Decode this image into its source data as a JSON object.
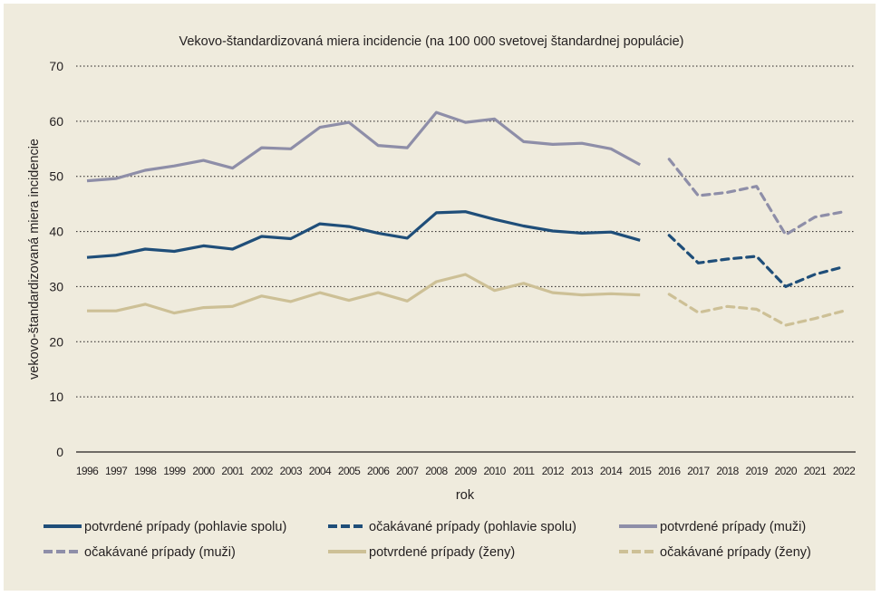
{
  "chart_data": {
    "type": "line",
    "title": "Vekovo-štandardizovaná miera incidencie (na 100 000 svetovej štandardnej populácie)",
    "xlabel": "rok",
    "ylabel": "vekovo-štandardizovaná miera incidencie",
    "ylim": [
      0,
      70
    ],
    "yticks": [
      "0",
      "10",
      "20",
      "30",
      "40",
      "50",
      "60",
      "70"
    ],
    "ytick_values": [
      0,
      10,
      20,
      30,
      40,
      50,
      60,
      70
    ],
    "x": [
      "1996",
      "1997",
      "1998",
      "1999",
      "2000",
      "2001",
      "2002",
      "2003",
      "2004",
      "2005",
      "2006",
      "2007",
      "2008",
      "2009",
      "2010",
      "2011",
      "2012",
      "2013",
      "2014",
      "2015",
      "2016",
      "2017",
      "2018",
      "2019",
      "2020",
      "2021",
      "2022"
    ],
    "grid": "horizontal-dotted",
    "legend_position": "bottom",
    "series": [
      {
        "name": "potvrdené prípady (pohlavie spolu)",
        "style": "solid",
        "color": "#1f4e79",
        "x": [
          "1996",
          "1997",
          "1998",
          "1999",
          "2000",
          "2001",
          "2002",
          "2003",
          "2004",
          "2005",
          "2006",
          "2007",
          "2008",
          "2009",
          "2010",
          "2011",
          "2012",
          "2013",
          "2014",
          "2015"
        ],
        "values": [
          35.3,
          35.7,
          36.8,
          36.4,
          37.4,
          36.8,
          39.1,
          38.7,
          41.4,
          40.9,
          39.7,
          38.8,
          43.4,
          43.6,
          42.2,
          41.0,
          40.1,
          39.7,
          39.9,
          38.4
        ]
      },
      {
        "name": "očakávané prípady (pohlavie spolu)",
        "style": "dashed",
        "color": "#1f4e79",
        "x": [
          "2016",
          "2017",
          "2018",
          "2019",
          "2020",
          "2021",
          "2022"
        ],
        "values": [
          39.3,
          34.3,
          35.0,
          35.5,
          30.0,
          32.2,
          33.6
        ]
      },
      {
        "name": "potvrdené prípady (muži)",
        "style": "solid",
        "color": "#8e8ea8",
        "x": [
          "1996",
          "1997",
          "1998",
          "1999",
          "2000",
          "2001",
          "2002",
          "2003",
          "2004",
          "2005",
          "2006",
          "2007",
          "2008",
          "2009",
          "2010",
          "2011",
          "2012",
          "2013",
          "2014",
          "2015"
        ],
        "values": [
          49.2,
          49.6,
          51.1,
          51.9,
          52.9,
          51.5,
          55.2,
          55.0,
          58.9,
          59.8,
          55.6,
          55.2,
          61.6,
          59.8,
          60.4,
          56.3,
          55.8,
          56.0,
          55.0,
          52.1
        ]
      },
      {
        "name": "očakávané prípady (muži)",
        "style": "dashed",
        "color": "#8e8ea8",
        "x": [
          "2016",
          "2017",
          "2018",
          "2019",
          "2020",
          "2021",
          "2022"
        ],
        "values": [
          53.1,
          46.5,
          47.1,
          48.2,
          39.4,
          42.6,
          43.6
        ]
      },
      {
        "name": "potvrdené prípady (ženy)",
        "style": "solid",
        "color": "#cdc096",
        "x": [
          "1996",
          "1997",
          "1998",
          "1999",
          "2000",
          "2001",
          "2002",
          "2003",
          "2004",
          "2005",
          "2006",
          "2007",
          "2008",
          "2009",
          "2010",
          "2011",
          "2012",
          "2013",
          "2014",
          "2015"
        ],
        "values": [
          25.6,
          25.6,
          26.8,
          25.2,
          26.2,
          26.4,
          28.3,
          27.3,
          28.9,
          27.5,
          28.9,
          27.4,
          30.9,
          32.2,
          29.3,
          30.6,
          28.9,
          28.5,
          28.7,
          28.5
        ]
      },
      {
        "name": "očakávané prípady (ženy)",
        "style": "dashed",
        "color": "#cdc096",
        "x": [
          "2016",
          "2017",
          "2018",
          "2019",
          "2020",
          "2021",
          "2022"
        ],
        "values": [
          28.6,
          25.3,
          26.4,
          25.9,
          23.0,
          24.2,
          25.6
        ]
      }
    ]
  },
  "colors": {
    "background": "#efebdd",
    "text": "#231f20",
    "grid": "#231f20"
  }
}
